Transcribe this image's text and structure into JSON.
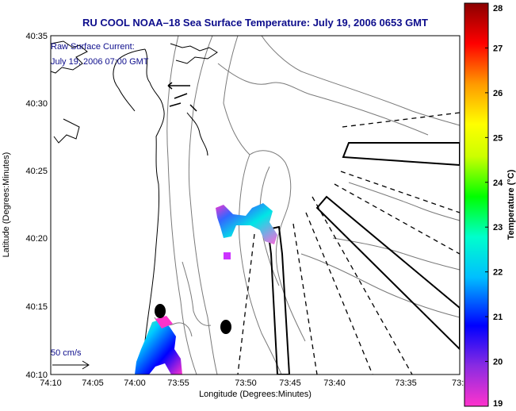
{
  "title": "RU COOL  NOAA–18  Sea Surface Temperature:  July 19, 2006 0653 GMT",
  "annotation": {
    "line1": "Raw Surface Current:",
    "line2": "July 19, 2006 07:00 GMT"
  },
  "scale_label": "50 cm/s",
  "axes": {
    "xlabel": "Longitude (Degrees:Minutes)",
    "ylabel": "Latitude (Degrees:Minutes)",
    "x_ticks": [
      "74:10",
      "74:05",
      "74:00",
      "73:55",
      "73:50",
      "73:45",
      "73:40",
      "73:35",
      "73:3"
    ],
    "y_ticks": [
      "40:35",
      "40:30",
      "40:25",
      "40:20",
      "40:15",
      "40:10"
    ]
  },
  "colorbar": {
    "label": "Temperature (°C)",
    "ticks": [
      "28",
      "27",
      "26",
      "25",
      "24",
      "23",
      "22",
      "21",
      "20",
      "19"
    ],
    "min": 19,
    "max": 28,
    "colors": [
      "#ff33cc",
      "#8a2be2",
      "#0000ff",
      "#00bfff",
      "#00ffcc",
      "#00ff00",
      "#ccff00",
      "#ffff00",
      "#ff9900",
      "#ff0000",
      "#8b0000"
    ]
  }
}
